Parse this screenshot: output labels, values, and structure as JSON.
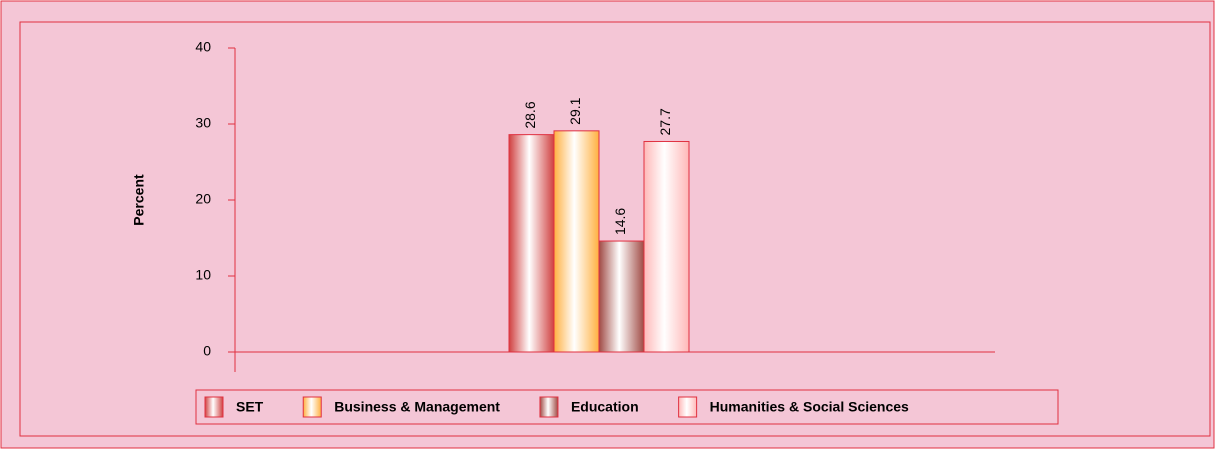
{
  "chart_data": {
    "type": "bar",
    "y_label": "Percent",
    "categories": [
      null
    ],
    "series": [
      {
        "name": "SET",
        "color": "#d04040",
        "values": [
          28.6
        ]
      },
      {
        "name": "Business & Management",
        "color": "#ffb040",
        "values": [
          29.1
        ]
      },
      {
        "name": "Education",
        "color": "#a04a44",
        "values": [
          14.6
        ]
      },
      {
        "name": "Humanities & Social Sciences",
        "color": "#ffb8b8",
        "values": [
          27.7
        ]
      }
    ],
    "ylim": [
      0,
      40
    ],
    "yticks": [
      0,
      10,
      20,
      30,
      40
    ],
    "legend": "bottom"
  }
}
